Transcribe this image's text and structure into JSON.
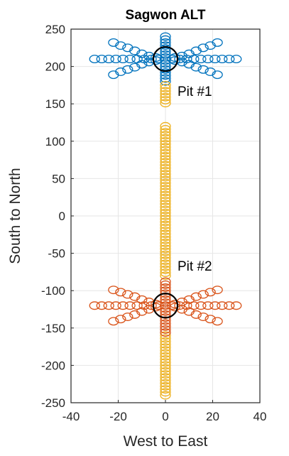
{
  "chart_data": {
    "type": "scatter",
    "title": "Sagwon ALT",
    "xlabel": "West to East",
    "ylabel": "South to North",
    "xlim": [
      -40,
      40
    ],
    "ylim": [
      -250,
      250
    ],
    "xticks": [
      -40,
      -20,
      0,
      20,
      40
    ],
    "yticks": [
      250,
      200,
      150,
      100,
      50,
      0,
      -50,
      -100,
      -150,
      -200,
      -250
    ],
    "grid": true,
    "marker": "open-circle",
    "pit1_label": "Pit #1",
    "pit2_label": "Pit #2",
    "series": [
      {
        "color": "#0072BD",
        "points": [
          [
            -30,
            210
          ],
          [
            -27,
            210
          ],
          [
            -24,
            210
          ],
          [
            -21,
            210
          ],
          [
            -18,
            210
          ],
          [
            -15,
            210
          ],
          [
            -12,
            210
          ],
          [
            -9,
            210
          ],
          [
            -6,
            210
          ],
          [
            -3,
            210
          ],
          [
            3,
            210
          ],
          [
            6,
            210
          ],
          [
            9,
            210
          ],
          [
            12,
            210
          ],
          [
            15,
            210
          ],
          [
            18,
            210
          ],
          [
            21,
            210
          ],
          [
            24,
            210
          ],
          [
            27,
            210
          ],
          [
            30,
            210
          ],
          [
            -22,
            232
          ],
          [
            -19,
            228
          ],
          [
            -16,
            225
          ],
          [
            -13,
            221
          ],
          [
            -10,
            217
          ],
          [
            -7,
            214
          ],
          [
            -4,
            212
          ],
          [
            4,
            212
          ],
          [
            7,
            214
          ],
          [
            10,
            217
          ],
          [
            13,
            221
          ],
          [
            16,
            225
          ],
          [
            19,
            228
          ],
          [
            22,
            232
          ],
          [
            -22,
            189
          ],
          [
            -19,
            193
          ],
          [
            -16,
            196
          ],
          [
            -13,
            199
          ],
          [
            -10,
            203
          ],
          [
            -7,
            206
          ],
          [
            -4,
            208
          ],
          [
            4,
            208
          ],
          [
            7,
            206
          ],
          [
            10,
            203
          ],
          [
            13,
            199
          ],
          [
            16,
            196
          ],
          [
            19,
            193
          ],
          [
            22,
            189
          ],
          [
            0,
            240
          ],
          [
            0,
            236
          ],
          [
            0,
            232
          ],
          [
            0,
            228
          ],
          [
            0,
            224
          ],
          [
            0,
            220
          ],
          [
            0,
            216
          ],
          [
            0,
            212
          ],
          [
            0,
            208
          ],
          [
            0,
            204
          ],
          [
            0,
            200
          ],
          [
            0,
            196
          ],
          [
            0,
            192
          ],
          [
            0,
            188
          ],
          [
            0,
            184
          ],
          [
            0,
            180
          ]
        ]
      },
      {
        "color": "#EDB120",
        "points": [
          [
            0,
            175
          ],
          [
            0,
            171
          ],
          [
            0,
            167
          ],
          [
            0,
            163
          ],
          [
            0,
            159
          ],
          [
            0,
            155
          ],
          [
            0,
            151
          ],
          [
            0,
            120
          ],
          [
            0,
            116
          ],
          [
            0,
            112
          ],
          [
            0,
            108
          ],
          [
            0,
            104
          ],
          [
            0,
            100
          ],
          [
            0,
            96
          ],
          [
            0,
            92
          ],
          [
            0,
            88
          ],
          [
            0,
            84
          ],
          [
            0,
            80
          ],
          [
            0,
            76
          ],
          [
            0,
            72
          ],
          [
            0,
            68
          ],
          [
            0,
            64
          ],
          [
            0,
            60
          ],
          [
            0,
            56
          ],
          [
            0,
            52
          ],
          [
            0,
            48
          ],
          [
            0,
            44
          ],
          [
            0,
            40
          ],
          [
            0,
            36
          ],
          [
            0,
            32
          ],
          [
            0,
            28
          ],
          [
            0,
            24
          ],
          [
            0,
            20
          ],
          [
            0,
            16
          ],
          [
            0,
            12
          ],
          [
            0,
            8
          ],
          [
            0,
            4
          ],
          [
            0,
            0
          ],
          [
            0,
            -4
          ],
          [
            0,
            -8
          ],
          [
            0,
            -12
          ],
          [
            0,
            -16
          ],
          [
            0,
            -20
          ],
          [
            0,
            -24
          ],
          [
            0,
            -28
          ],
          [
            0,
            -32
          ],
          [
            0,
            -36
          ],
          [
            0,
            -40
          ],
          [
            0,
            -44
          ],
          [
            0,
            -48
          ],
          [
            0,
            -52
          ],
          [
            0,
            -56
          ],
          [
            0,
            -60
          ],
          [
            0,
            -64
          ],
          [
            0,
            -68
          ],
          [
            0,
            -72
          ],
          [
            0,
            -76
          ],
          [
            0,
            -80
          ],
          [
            0,
            -160
          ],
          [
            0,
            -164
          ],
          [
            0,
            -168
          ],
          [
            0,
            -172
          ],
          [
            0,
            -176
          ],
          [
            0,
            -180
          ],
          [
            0,
            -184
          ],
          [
            0,
            -188
          ],
          [
            0,
            -192
          ],
          [
            0,
            -196
          ],
          [
            0,
            -200
          ],
          [
            0,
            -204
          ],
          [
            0,
            -208
          ],
          [
            0,
            -212
          ],
          [
            0,
            -216
          ],
          [
            0,
            -220
          ],
          [
            0,
            -224
          ],
          [
            0,
            -228
          ],
          [
            0,
            -232
          ],
          [
            0,
            -236
          ],
          [
            0,
            -240
          ]
        ]
      },
      {
        "color": "#D95319",
        "points": [
          [
            -30,
            -120
          ],
          [
            -27,
            -120
          ],
          [
            -24,
            -120
          ],
          [
            -21,
            -120
          ],
          [
            -18,
            -120
          ],
          [
            -15,
            -120
          ],
          [
            -12,
            -120
          ],
          [
            -9,
            -120
          ],
          [
            -6,
            -120
          ],
          [
            -3,
            -120
          ],
          [
            3,
            -120
          ],
          [
            6,
            -120
          ],
          [
            9,
            -120
          ],
          [
            12,
            -120
          ],
          [
            15,
            -120
          ],
          [
            18,
            -120
          ],
          [
            21,
            -120
          ],
          [
            24,
            -120
          ],
          [
            27,
            -120
          ],
          [
            30,
            -120
          ],
          [
            -22,
            -99
          ],
          [
            -19,
            -102
          ],
          [
            -16,
            -105
          ],
          [
            -13,
            -108
          ],
          [
            -10,
            -112
          ],
          [
            -7,
            -115
          ],
          [
            -4,
            -118
          ],
          [
            4,
            -118
          ],
          [
            7,
            -115
          ],
          [
            10,
            -112
          ],
          [
            13,
            -108
          ],
          [
            16,
            -105
          ],
          [
            19,
            -102
          ],
          [
            22,
            -99
          ],
          [
            -22,
            -141
          ],
          [
            -19,
            -138
          ],
          [
            -16,
            -135
          ],
          [
            -13,
            -132
          ],
          [
            -10,
            -128
          ],
          [
            -7,
            -125
          ],
          [
            -4,
            -122
          ],
          [
            4,
            -122
          ],
          [
            7,
            -125
          ],
          [
            10,
            -128
          ],
          [
            13,
            -132
          ],
          [
            16,
            -135
          ],
          [
            19,
            -138
          ],
          [
            22,
            -141
          ],
          [
            0,
            -88
          ],
          [
            0,
            -92
          ],
          [
            0,
            -96
          ],
          [
            0,
            -100
          ],
          [
            0,
            -104
          ],
          [
            0,
            -108
          ],
          [
            0,
            -112
          ],
          [
            0,
            -116
          ],
          [
            0,
            -120
          ],
          [
            0,
            -124
          ],
          [
            0,
            -128
          ],
          [
            0,
            -132
          ],
          [
            0,
            -136
          ],
          [
            0,
            -140
          ],
          [
            0,
            -144
          ],
          [
            0,
            -148
          ],
          [
            0,
            -152
          ],
          [
            0,
            -156
          ]
        ]
      }
    ],
    "pits": [
      {
        "center": [
          0,
          210
        ],
        "color": "#000000"
      },
      {
        "center": [
          0,
          -120
        ],
        "color": "#000000"
      }
    ]
  }
}
